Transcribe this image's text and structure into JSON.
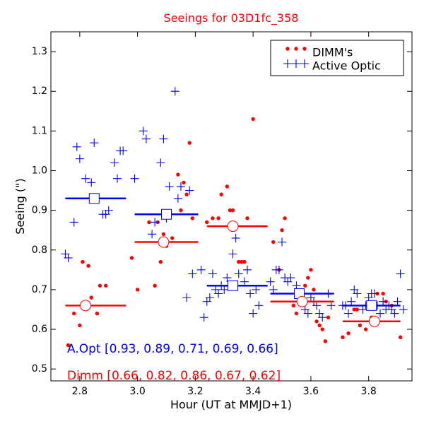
{
  "chart_data": {
    "type": "scatter",
    "title": "Seeings for 03D1fc_358",
    "xlabel": "Hour (UT at MMJD+1)",
    "ylabel": "Seeing (\")",
    "xlim": [
      2.7,
      3.95
    ],
    "ylim": [
      0.47,
      1.35
    ],
    "xticks": [
      2.8,
      3.0,
      3.2,
      3.4,
      3.6,
      3.8
    ],
    "xtick_labels": [
      "2.8",
      "3.0",
      "3.2",
      "3.4",
      "3.6",
      "3.8"
    ],
    "yticks": [
      0.5,
      0.6,
      0.7,
      0.8,
      0.9,
      1.0,
      1.1,
      1.2,
      1.3
    ],
    "ytick_labels": [
      "0.5",
      "0.6",
      "0.7",
      "0.8",
      "0.9",
      "1.0",
      "1.1",
      "1.2",
      "1.3"
    ],
    "grid": false,
    "legend": {
      "position": "top-right",
      "entries": [
        {
          "label": "DIMM's",
          "marker": "dots",
          "color": "#ff0000"
        },
        {
          "label": "Active Optic",
          "marker": "plus",
          "color": "#0000ff"
        }
      ]
    },
    "series": [
      {
        "name": "DIMM's",
        "color": "#ff0000",
        "marker": "dot",
        "x": [
          2.76,
          2.78,
          2.8,
          2.81,
          2.83,
          2.84,
          2.86,
          2.87,
          2.89,
          2.98,
          3.0,
          3.04,
          3.06,
          3.07,
          3.08,
          3.09,
          3.1,
          3.12,
          3.14,
          3.15,
          3.16,
          3.17,
          3.18,
          3.19,
          3.24,
          3.26,
          3.28,
          3.29,
          3.31,
          3.32,
          3.33,
          3.35,
          3.36,
          3.37,
          3.38,
          3.4,
          3.47,
          3.49,
          3.5,
          3.51,
          3.54,
          3.55,
          3.56,
          3.58,
          3.59,
          3.6,
          3.61,
          3.62,
          3.63,
          3.64,
          3.65,
          3.66,
          3.71,
          3.73,
          3.75,
          3.76,
          3.77,
          3.79,
          3.81,
          3.83,
          3.85,
          3.86,
          3.88,
          3.91
        ],
        "y": [
          0.56,
          0.64,
          0.61,
          0.77,
          0.76,
          0.68,
          0.64,
          0.71,
          0.71,
          0.78,
          0.7,
          0.87,
          0.71,
          0.87,
          0.77,
          0.84,
          0.81,
          0.83,
          0.99,
          0.9,
          0.97,
          0.94,
          1.07,
          0.88,
          0.87,
          0.88,
          0.88,
          0.94,
          0.96,
          0.9,
          0.9,
          0.77,
          0.77,
          0.77,
          0.88,
          1.13,
          0.82,
          0.75,
          0.85,
          0.88,
          0.66,
          0.64,
          0.67,
          0.71,
          0.73,
          0.75,
          0.7,
          0.62,
          0.61,
          0.6,
          0.57,
          0.63,
          0.58,
          0.59,
          0.65,
          0.65,
          0.61,
          0.6,
          0.63,
          0.69,
          0.69,
          0.67,
          0.66,
          0.58
        ]
      },
      {
        "name": "Active Optic",
        "color": "#0000ff",
        "marker": "plus",
        "x": [
          2.75,
          2.76,
          2.78,
          2.79,
          2.8,
          2.82,
          2.84,
          2.85,
          2.86,
          2.88,
          2.89,
          2.9,
          2.92,
          2.93,
          2.94,
          2.95,
          2.99,
          3.02,
          3.03,
          3.05,
          3.06,
          3.08,
          3.09,
          3.1,
          3.11,
          3.13,
          3.14,
          3.15,
          3.17,
          3.18,
          3.19,
          3.22,
          3.23,
          3.24,
          3.25,
          3.26,
          3.27,
          3.28,
          3.29,
          3.3,
          3.31,
          3.32,
          3.33,
          3.34,
          3.35,
          3.37,
          3.38,
          3.39,
          3.4,
          3.41,
          3.42,
          3.46,
          3.47,
          3.48,
          3.49,
          3.5,
          3.51,
          3.52,
          3.53,
          3.55,
          3.56,
          3.57,
          3.58,
          3.59,
          3.6,
          3.61,
          3.62,
          3.63,
          3.64,
          3.66,
          3.67,
          3.71,
          3.72,
          3.73,
          3.74,
          3.75,
          3.76,
          3.78,
          3.79,
          3.8,
          3.81,
          3.82,
          3.83,
          3.84,
          3.85,
          3.86,
          3.87,
          3.88,
          3.89,
          3.9,
          3.91,
          3.92
        ],
        "y": [
          0.79,
          0.78,
          0.87,
          1.06,
          1.03,
          0.98,
          0.97,
          1.07,
          0.93,
          0.89,
          0.89,
          0.9,
          1.02,
          0.98,
          1.05,
          1.05,
          0.98,
          1.1,
          1.08,
          0.84,
          0.87,
          1.02,
          1.08,
          0.88,
          0.96,
          1.2,
          0.93,
          0.96,
          0.68,
          0.95,
          0.74,
          0.75,
          0.63,
          0.67,
          0.68,
          0.74,
          0.7,
          0.69,
          0.71,
          0.7,
          0.73,
          0.71,
          0.79,
          0.83,
          0.74,
          0.72,
          0.75,
          0.69,
          0.64,
          0.7,
          0.66,
          0.72,
          0.7,
          0.75,
          0.75,
          0.82,
          0.73,
          0.72,
          0.73,
          0.71,
          0.69,
          0.67,
          0.65,
          0.64,
          0.68,
          0.67,
          0.66,
          0.64,
          0.63,
          0.69,
          0.66,
          0.66,
          0.66,
          0.64,
          0.67,
          0.7,
          0.69,
          0.65,
          0.66,
          0.68,
          0.69,
          0.69,
          0.66,
          0.64,
          0.67,
          0.65,
          0.66,
          0.65,
          0.64,
          0.67,
          0.74,
          0.65
        ]
      }
    ],
    "bins": {
      "a_opt": {
        "color": "#0000ff",
        "marker": "square",
        "x_start": [
          2.75,
          2.99,
          3.24,
          3.46,
          3.71
        ],
        "x_end": [
          2.96,
          3.21,
          3.45,
          3.68,
          3.91
        ],
        "x_center": [
          2.85,
          3.1,
          3.33,
          3.56,
          3.81
        ],
        "values": [
          0.93,
          0.89,
          0.71,
          0.69,
          0.66
        ]
      },
      "dimm": {
        "color": "#ff0000",
        "marker": "circle",
        "x_start": [
          2.75,
          2.99,
          3.24,
          3.46,
          3.71
        ],
        "x_end": [
          2.96,
          3.21,
          3.45,
          3.68,
          3.91
        ],
        "x_center": [
          2.82,
          3.09,
          3.33,
          3.57,
          3.82
        ],
        "values": [
          0.66,
          0.82,
          0.86,
          0.67,
          0.62
        ]
      }
    },
    "annotations": [
      {
        "text": "A.Opt [0.93, 0.89, 0.71, 0.69, 0.66]",
        "color": "#0000ff"
      },
      {
        "text": "Dimm [0.66, 0.82, 0.86, 0.67, 0.62]",
        "color": "#ff0000"
      }
    ]
  }
}
